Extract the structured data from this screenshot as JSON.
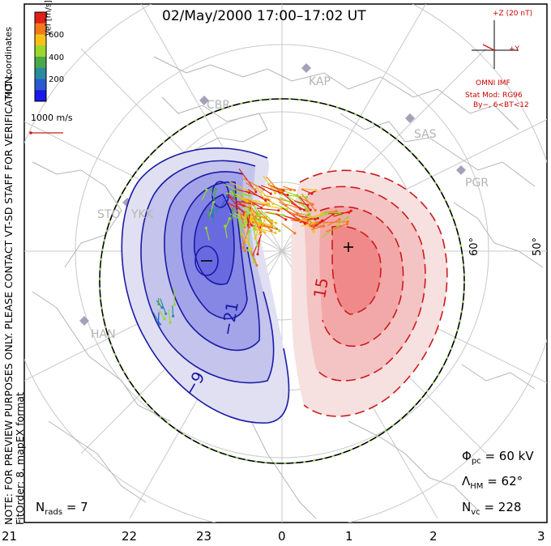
{
  "title": "02/May/2000 17:00–17:02 UT",
  "colorbar": {
    "ticks": [
      "600",
      "400",
      "200"
    ],
    "label": "Vel [m/s]",
    "colors": [
      "#e0201a",
      "#f07a1a",
      "#f5c21a",
      "#9ad82a",
      "#4aa84a",
      "#2a8aa0",
      "#2a5ad0",
      "#1a1ae8"
    ]
  },
  "coords_label": "MLT coordinates",
  "vector_scale": "1000 m/s",
  "note": {
    "line1": "NOTE: FOR PREVIEW PURPOSES ONLY. PLEASE CONTACT VT-SD STAFF FOR VERIFICATION.",
    "line2": "FitOrder: 8, mapEX format"
  },
  "imf": {
    "z_label": "+Z (20 nT)",
    "y_label": "+Y",
    "source": "OMNI IMF",
    "model_line1": "Stat Mod: RG96",
    "model_line2": "By−, 6<BT<12"
  },
  "stations": [
    "KAP",
    "CBR",
    "SAS",
    "PGR",
    "STO",
    "YKK",
    "HAN"
  ],
  "lat_labels": [
    "60°",
    "50°"
  ],
  "contours": {
    "positive_label": "15",
    "neg_labels": [
      "−21",
      "−9"
    ]
  },
  "bottom_axis": [
    "21",
    "22",
    "23",
    "0",
    "1",
    "2",
    "3"
  ],
  "stats": {
    "n_rads_label": "N",
    "n_rads_sub": "rads",
    "n_rads_value": "= 7",
    "phi_label": "Φ",
    "phi_sub": "pc",
    "phi_value": "= 60 kV",
    "lambda_label": "Λ",
    "lambda_sub": "HM",
    "lambda_value": "= 62°",
    "nvc_label": "N",
    "nvc_sub": "vc",
    "nvc_value": "= 228"
  }
}
